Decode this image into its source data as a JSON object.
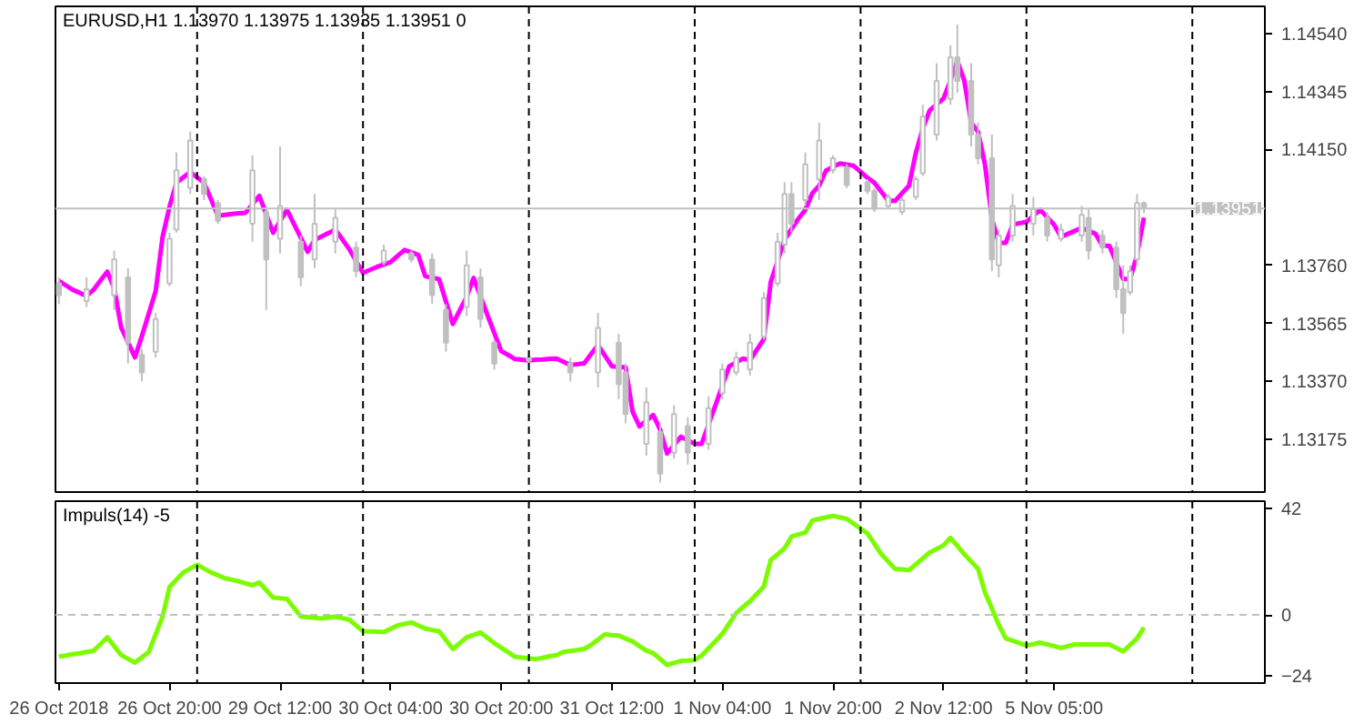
{
  "chart_data": [
    {
      "type": "candlestick",
      "title": "EURUSD,H1  1.13970 1.13975 1.13935 1.13951  0",
      "color": "#c0c0c0",
      "categories": [
        null,
        null,
        null,
        null,
        null,
        null,
        null,
        null,
        null,
        null,
        null,
        null,
        null,
        null,
        null,
        null,
        null,
        null,
        null,
        null,
        null,
        null,
        null,
        null,
        null,
        null,
        null,
        null,
        null,
        null,
        null,
        null,
        null,
        null,
        null,
        null,
        null,
        null,
        null,
        null,
        null,
        null,
        null,
        null,
        null,
        null,
        null,
        null,
        null,
        null,
        null,
        null,
        null,
        null,
        null,
        null,
        null,
        null,
        null,
        null,
        null,
        null,
        null,
        null,
        null,
        null,
        null,
        null,
        null,
        null,
        null,
        null,
        null,
        null,
        null,
        null,
        null,
        null,
        null,
        null,
        null,
        null,
        null,
        null,
        null,
        null,
        null,
        null,
        null,
        null,
        null,
        null,
        null,
        null,
        null,
        null,
        null,
        null,
        null,
        null,
        null,
        null,
        null,
        null,
        null,
        null,
        null,
        null,
        null,
        null,
        null,
        null,
        null,
        null,
        null,
        null,
        null,
        null,
        null,
        null,
        null,
        null,
        null,
        null,
        null,
        null,
        null,
        null,
        null,
        null,
        null,
        null,
        null,
        null,
        null,
        null,
        null,
        null,
        null,
        null,
        null,
        null,
        null,
        null,
        null,
        null,
        null,
        null,
        null,
        null,
        null,
        null,
        null,
        null,
        null,
        null,
        null,
        null,
        null,
        null,
        null,
        null,
        null,
        null,
        null,
        null,
        null,
        null,
        null,
        null,
        null,
        null,
        null,
        null,
        null
      ],
      "ohlc": [
        [
          1.137,
          1.1372,
          1.1363,
          1.1366
        ],
        null,
        null,
        null,
        [
          1.1364,
          1.1372,
          1.1362,
          1.1368
        ],
        null,
        null,
        null,
        [
          1.1366,
          1.1381,
          1.1361,
          1.1378
        ],
        null,
        [
          1.1372,
          1.1375,
          1.1343,
          1.135
        ],
        null,
        [
          1.1346,
          1.1348,
          1.1337,
          1.134
        ],
        null,
        [
          1.1347,
          1.136,
          1.1345,
          1.1358
        ],
        null,
        [
          1.137,
          1.1387,
          1.1369,
          1.1385
        ],
        [
          1.1388,
          1.1414,
          1.1387,
          1.1408
        ],
        null,
        [
          1.1402,
          1.1421,
          1.14,
          1.1418
        ],
        null,
        [
          1.1405,
          1.1406,
          1.1398,
          1.14
        ],
        null,
        [
          1.1397,
          1.1398,
          1.139,
          1.1391
        ],
        null,
        null,
        null,
        null,
        [
          1.139,
          1.1413,
          1.1384,
          1.1408
        ],
        null,
        [
          1.1394,
          1.1396,
          1.1361,
          1.1378
        ],
        null,
        [
          1.1385,
          1.1416,
          1.138,
          1.1396
        ],
        null,
        null,
        [
          1.1384,
          1.1386,
          1.1369,
          1.1372
        ],
        null,
        [
          1.1378,
          1.14,
          1.1375,
          1.139
        ],
        null,
        null,
        [
          1.1384,
          1.1395,
          1.138,
          1.1392
        ],
        null,
        null,
        [
          1.1382,
          1.1384,
          1.1372,
          1.1374
        ],
        null,
        null,
        null,
        [
          1.1377,
          1.1383,
          1.1376,
          1.1381
        ],
        null,
        null,
        null,
        [
          1.138,
          1.1381,
          1.1377,
          1.1378
        ],
        null,
        null,
        [
          1.1378,
          1.138,
          1.1363,
          1.1366
        ],
        null,
        [
          1.1361,
          1.1363,
          1.1347,
          1.135
        ],
        null,
        null,
        [
          1.1362,
          1.1381,
          1.1359,
          1.1376
        ],
        null,
        [
          1.1372,
          1.1375,
          1.1355,
          1.1358
        ],
        null,
        [
          1.135,
          1.1351,
          1.1341,
          1.1343
        ],
        null,
        null,
        null,
        null,
        [
          1.1345,
          1.1347,
          1.1342,
          1.1344
        ],
        null,
        null,
        null,
        null,
        null,
        [
          1.1343,
          1.1345,
          1.1337,
          1.134
        ],
        null,
        null,
        null,
        [
          1.134,
          1.136,
          1.1335,
          1.1355
        ],
        null,
        null,
        [
          1.135,
          1.1353,
          1.1331,
          1.1336
        ],
        [
          1.134,
          1.1343,
          1.1323,
          1.1326
        ],
        null,
        null,
        [
          1.1316,
          1.1335,
          1.1312,
          1.133
        ],
        null,
        [
          1.132,
          1.1323,
          1.1303,
          1.1306
        ],
        null,
        [
          1.1313,
          1.1329,
          1.1311,
          1.1326
        ],
        null,
        [
          1.1322,
          1.1325,
          1.1309,
          1.1313
        ],
        null,
        null,
        [
          1.1316,
          1.1332,
          1.1314,
          1.1328
        ],
        null,
        [
          1.1333,
          1.1343,
          1.1331,
          1.1341
        ],
        null,
        [
          1.134,
          1.1347,
          1.1339,
          1.1345
        ],
        null,
        [
          1.1341,
          1.1353,
          1.1339,
          1.135
        ],
        null,
        [
          1.1352,
          1.1367,
          1.1351,
          1.1365
        ],
        null,
        [
          1.137,
          1.1387,
          1.1369,
          1.1384
        ],
        [
          1.1383,
          1.1404,
          1.138,
          1.14
        ],
        [
          1.14,
          1.1404,
          1.1387,
          1.139
        ],
        null,
        [
          1.1398,
          1.1414,
          1.1396,
          1.141
        ],
        null,
        [
          1.1405,
          1.1424,
          1.1398,
          1.1418
        ],
        null,
        [
          1.1408,
          1.1413,
          1.1407,
          1.1412
        ],
        null,
        [
          1.1409,
          1.141,
          1.1402,
          1.1403
        ],
        null,
        null,
        [
          1.1404,
          1.1405,
          1.14,
          1.1401
        ],
        [
          1.1401,
          1.1402,
          1.1394,
          1.1395
        ],
        null,
        [
          1.1396,
          1.14,
          1.1395,
          1.1399
        ],
        null,
        [
          1.1394,
          1.1399,
          1.1393,
          1.1398
        ],
        null,
        [
          1.1399,
          1.1406,
          1.1398,
          1.1405
        ],
        [
          1.1407,
          1.143,
          1.1406,
          1.1426
        ],
        null,
        [
          1.142,
          1.1444,
          1.1418,
          1.1438
        ],
        null,
        [
          1.1432,
          1.145,
          1.143,
          1.1446
        ],
        [
          1.1446,
          1.1457,
          1.1434,
          1.1438
        ],
        null,
        [
          1.1438,
          1.1444,
          1.1416,
          1.142
        ],
        [
          1.142,
          1.1424,
          1.141,
          1.1412
        ],
        null,
        [
          1.1412,
          1.142,
          1.1374,
          1.1378
        ],
        [
          1.1376,
          1.1388,
          1.1372,
          1.1386
        ],
        null,
        [
          1.1386,
          1.14,
          1.1384,
          1.1396
        ],
        null,
        null,
        [
          1.139,
          1.1399,
          1.1386,
          1.1395
        ],
        null,
        [
          1.1392,
          1.1394,
          1.1384,
          1.1386
        ],
        null,
        [
          1.1385,
          1.139,
          1.1384,
          1.1388
        ],
        null,
        null,
        [
          1.1386,
          1.1396,
          1.1384,
          1.1393
        ],
        [
          1.1392,
          1.1395,
          1.1378,
          1.1381
        ],
        null,
        [
          1.1386,
          1.1388,
          1.138,
          1.1382
        ],
        null,
        [
          1.1382,
          1.1384,
          1.1365,
          1.1368
        ],
        [
          1.1368,
          1.1376,
          1.1353,
          1.136
        ],
        [
          1.1367,
          1.1376,
          1.1366,
          1.1374
        ],
        [
          1.1378,
          1.14,
          1.1376,
          1.1397
        ],
        [
          1.1397,
          1.13975,
          1.13935,
          1.13951
        ],
        null,
        null,
        null,
        null,
        null,
        null,
        null,
        null,
        null,
        null,
        null,
        null,
        null,
        null,
        null,
        null,
        null
      ],
      "series": [
        {
          "type": "line",
          "color": "#ff00ff",
          "values": [
            1.13708,
            1.13693,
            1.13678,
            1.13668,
            1.13657,
            1.13678,
            1.13709,
            1.13739,
            1.13684,
            1.13552,
            1.13502,
            1.13451,
            1.13522,
            1.13598,
            1.13674,
            1.13856,
            1.13957,
            1.14038,
            1.14056,
            1.14074,
            1.14056,
            1.14038,
            1.13983,
            1.13927,
            1.1393,
            1.13933,
            1.13935,
            1.13937,
            1.13966,
            1.13994,
            1.13932,
            1.1387,
            1.13909,
            1.13947,
            1.139,
            1.13853,
            1.13806,
            1.13846,
            1.13857,
            1.13869,
            1.1388,
            1.13848,
            1.13815,
            1.13775,
            1.13735,
            1.13745,
            1.13755,
            1.13763,
            1.13771,
            1.13792,
            1.13812,
            1.13804,
            1.13795,
            1.13724,
            1.13719,
            1.13714,
            1.13639,
            1.13563,
            1.13609,
            1.13654,
            1.13718,
            1.13656,
            1.13593,
            1.13533,
            1.13472,
            1.13459,
            1.13445,
            1.13443,
            1.13441,
            1.13443,
            1.13444,
            1.13446,
            1.13447,
            1.13436,
            1.13425,
            1.13428,
            1.13431,
            1.13462,
            1.13492,
            1.13457,
            1.13421,
            1.13419,
            1.13417,
            1.13269,
            1.13219,
            1.13238,
            1.13257,
            1.13208,
            1.13128,
            1.13156,
            1.13184,
            1.13172,
            1.1316,
            1.1316,
            1.13225,
            1.1329,
            1.13356,
            1.13421,
            1.13434,
            1.13447,
            1.13441,
            1.13477,
            1.13512,
            1.13704,
            1.13775,
            1.13846,
            1.13882,
            1.13917,
            1.13947,
            1.14002,
            1.14028,
            1.14079,
            1.14091,
            1.14103,
            1.14099,
            1.14095,
            1.14075,
            1.14054,
            1.14038,
            1.14008,
            1.13977,
            1.13977,
            1.14003,
            1.14028,
            1.14139,
            1.1422,
            1.14281,
            1.14301,
            1.14321,
            1.14382,
            1.14447,
            1.14382,
            1.1424,
            1.1421,
            1.14099,
            1.13917,
            1.13836,
            1.13836,
            1.13897,
            1.13902,
            1.13906,
            1.13927,
            1.13947,
            1.13922,
            1.13897,
            1.13856,
            1.13866,
            1.13876,
            1.13886,
            1.13876,
            1.13866,
            1.13826,
            1.13826,
            1.1377,
            1.13714,
            1.13714,
            1.13795,
            1.13921,
            null,
            null,
            null,
            null,
            null,
            null,
            null,
            null,
            null,
            null,
            null,
            null,
            null,
            null,
            null,
            null,
            null
          ]
        }
      ],
      "ylim": [
        1.12998,
        1.14631
      ],
      "yticks": [
        {
          "value": 1.13175,
          "label": "1.13175"
        },
        {
          "value": 1.1337,
          "label": "1.13370"
        },
        {
          "value": 1.13565,
          "label": "1.13565"
        },
        {
          "value": 1.1376,
          "label": "1.13760"
        },
        {
          "value": 1.1415,
          "label": "1.14150"
        },
        {
          "value": 1.14345,
          "label": "1.14345"
        },
        {
          "value": 1.1454,
          "label": "1.14540"
        }
      ],
      "tick_labels": "y",
      "ref_lines": [
        {
          "axis": "y",
          "value": 1.13951,
          "label": "1.13951",
          "color": "#c0c0c0"
        }
      ]
    },
    {
      "type": "line",
      "title": "Impuls(14) -5",
      "categories": [
        "26 Oct 2018",
        null,
        null,
        null,
        null,
        null,
        null,
        null,
        null,
        null,
        null,
        null,
        null,
        null,
        null,
        null,
        "26 Oct 20:00",
        null,
        null,
        null,
        null,
        null,
        null,
        null,
        null,
        null,
        null,
        null,
        null,
        null,
        null,
        null,
        "29 Oct 12:00",
        null,
        null,
        null,
        null,
        null,
        null,
        null,
        null,
        null,
        null,
        null,
        null,
        null,
        null,
        null,
        "30 Oct 04:00",
        null,
        null,
        null,
        null,
        null,
        null,
        null,
        null,
        null,
        null,
        null,
        null,
        null,
        null,
        null,
        "30 Oct 20:00",
        null,
        null,
        null,
        null,
        null,
        null,
        null,
        null,
        null,
        null,
        null,
        null,
        null,
        null,
        null,
        "31 Oct 12:00",
        null,
        null,
        null,
        null,
        null,
        null,
        null,
        null,
        null,
        null,
        null,
        null,
        null,
        null,
        null,
        "1 Nov 04:00",
        null,
        null,
        null,
        null,
        null,
        null,
        null,
        null,
        null,
        null,
        null,
        null,
        null,
        null,
        null,
        "1 Nov 20:00",
        null,
        null,
        null,
        null,
        null,
        null,
        null,
        null,
        null,
        null,
        null,
        null,
        null,
        null,
        null,
        "2 Nov 12:00",
        null,
        null,
        null,
        null,
        null,
        null,
        null,
        null,
        null,
        null,
        null,
        null,
        null,
        null,
        null,
        "5 Nov 05:00",
        null,
        null,
        null,
        null,
        null,
        null,
        null,
        null,
        null,
        null,
        null,
        null,
        null,
        null,
        null,
        null,
        null,
        null,
        null,
        null,
        null,
        null,
        null,
        null,
        null,
        null,
        null,
        null,
        null,
        null
      ],
      "series": [
        {
          "color": "#7cfc00",
          "values": [
            -16.5,
            -16.1,
            -15.6,
            -15.2,
            -14.7,
            -14.2,
            -11.6,
            -8.9,
            -12.4,
            -15.9,
            -17.4,
            -18.9,
            -16.8,
            -14.7,
            -7.7,
            -0.7,
            11.0,
            13.9,
            16.8,
            18.3,
            19.8,
            18.3,
            16.8,
            15.7,
            14.5,
            13.9,
            13.3,
            12.5,
            11.7,
            12.8,
            9.8,
            6.8,
            6.6,
            6.3,
            2.8,
            -0.7,
            -0.9,
            -1.2,
            -1.4,
            -1.1,
            -0.7,
            -1.3,
            -1.9,
            -4.2,
            -6.5,
            -6.6,
            -6.7,
            -6.8,
            -5.5,
            -4.2,
            -3.6,
            -3.0,
            -4.2,
            -5.4,
            -6.0,
            -6.5,
            -10.0,
            -13.5,
            -11.2,
            -8.9,
            -8.0,
            -7.0,
            -9.1,
            -11.2,
            -13.0,
            -14.8,
            -16.6,
            -16.9,
            -17.2,
            -17.5,
            -17.0,
            -16.4,
            -15.9,
            -14.7,
            -14.3,
            -13.9,
            -13.5,
            -11.9,
            -9.8,
            -7.7,
            -8.0,
            -8.2,
            -9.4,
            -10.5,
            -12.4,
            -14.2,
            -15.2,
            -17.5,
            -19.8,
            -19.0,
            -18.2,
            -18.1,
            -17.9,
            -16.1,
            -13.2,
            -10.4,
            -7.5,
            -3.4,
            0.7,
            3.1,
            5.4,
            8.3,
            11.2,
            21.7,
            24.0,
            26.3,
            31.0,
            31.8,
            32.6,
            37.3,
            38.0,
            38.6,
            39.2,
            38.6,
            38.0,
            36.1,
            34.1,
            32.2,
            28.1,
            24.0,
            21.1,
            18.2,
            18.0,
            17.7,
            20.0,
            22.4,
            24.7,
            26.1,
            27.5,
            30.5,
            27.3,
            24.0,
            21.1,
            18.2,
            8.9,
            2.5,
            -4.0,
            -9.3,
            -10.2,
            -11.2,
            -12.1,
            -11.6,
            -11.0,
            -11.7,
            -12.4,
            -13.1,
            -12.4,
            -11.7,
            -11.7,
            -11.7,
            -11.7,
            -11.7,
            -11.7,
            -13.1,
            -14.5,
            -11.9,
            -9.3,
            -5.0,
            null,
            null,
            null,
            null,
            null,
            null,
            null,
            null,
            null,
            null,
            null,
            null,
            null,
            null,
            null,
            null,
            null
          ]
        }
      ],
      "ylim": [
        -27,
        45
      ],
      "yticks": [
        -24,
        0,
        42
      ],
      "ref_lines": [
        {
          "axis": "y",
          "value": 0,
          "color": "#c0c0c0",
          "line_style": "dashed"
        }
      ]
    }
  ]
}
